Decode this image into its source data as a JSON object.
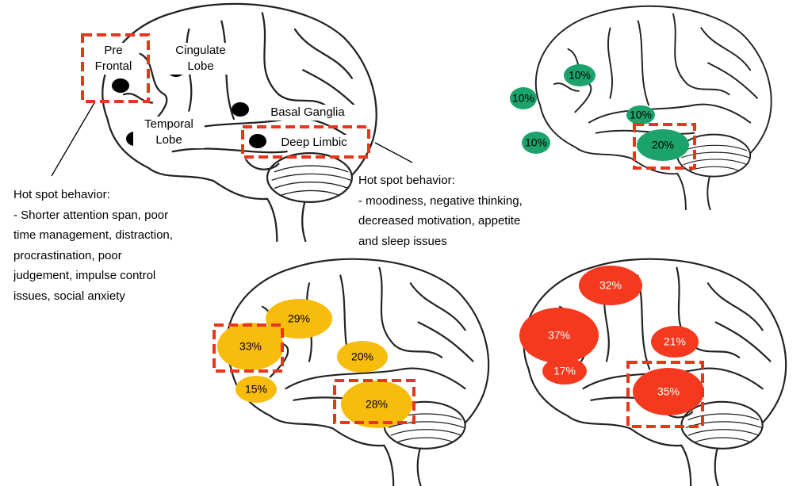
{
  "top_left": {
    "labels": [
      "Pre\nFrontal",
      "Cingulate\nLobe",
      "Basal Ganglia",
      "Temporal\nLobe",
      "Deep Limbic"
    ],
    "left_note": {
      "heading": "Hot spot behavior:",
      "lines": [
        "- Shorter attention span, poor",
        "time management, distraction,",
        "procrastination, poor",
        "judgement, impulse control",
        "issues, social anxiety"
      ]
    },
    "right_note": {
      "heading": "Hot spot behavior:",
      "lines": [
        "- moodiness, negative thinking,",
        "decreased motivation, appetite",
        "and sleep issues"
      ]
    }
  },
  "top_right": {
    "spots": [
      "10%",
      "10%",
      "10%",
      "10%",
      "20%"
    ]
  },
  "bottom_left": {
    "spots": [
      "29%",
      "33%",
      "20%",
      "15%",
      "28%"
    ]
  },
  "bottom_right": {
    "spots": [
      "32%",
      "37%",
      "21%",
      "17%",
      "35%"
    ]
  }
}
